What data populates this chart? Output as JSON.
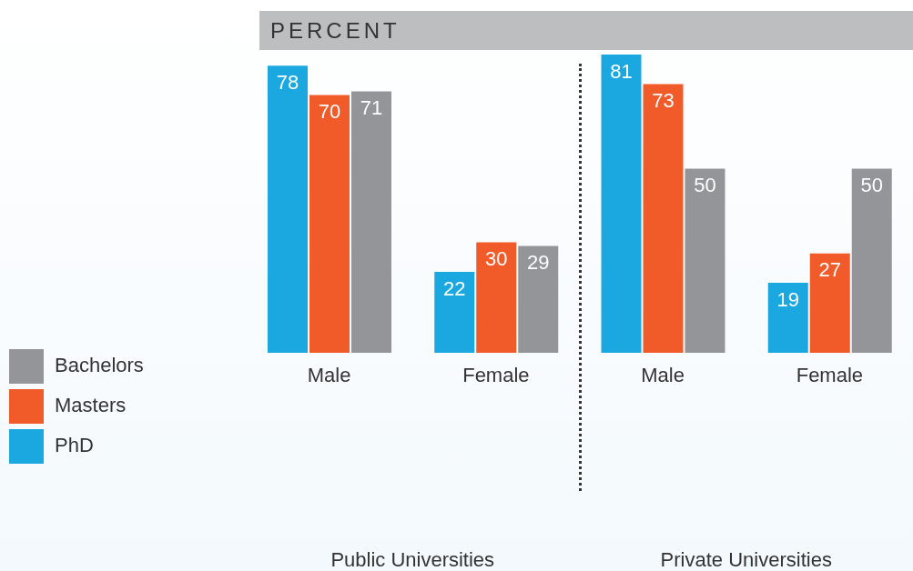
{
  "chart_data": {
    "type": "bar",
    "title": "PERCENT",
    "categories": [
      "Male",
      "Female",
      "Male",
      "Female"
    ],
    "series": [
      {
        "name": "PhD",
        "color": "#1ba8e0",
        "values": [
          78,
          22,
          81,
          19
        ]
      },
      {
        "name": "Masters",
        "color": "#f15a29",
        "values": [
          70,
          30,
          73,
          27
        ]
      },
      {
        "name": "Bachelors",
        "color": "#939598",
        "values": [
          71,
          29,
          50,
          50
        ]
      }
    ],
    "data_labels": true,
    "legend": "left",
    "grid": false,
    "annotations": [
      "Public Universities",
      "Private Universities"
    ]
  }
}
